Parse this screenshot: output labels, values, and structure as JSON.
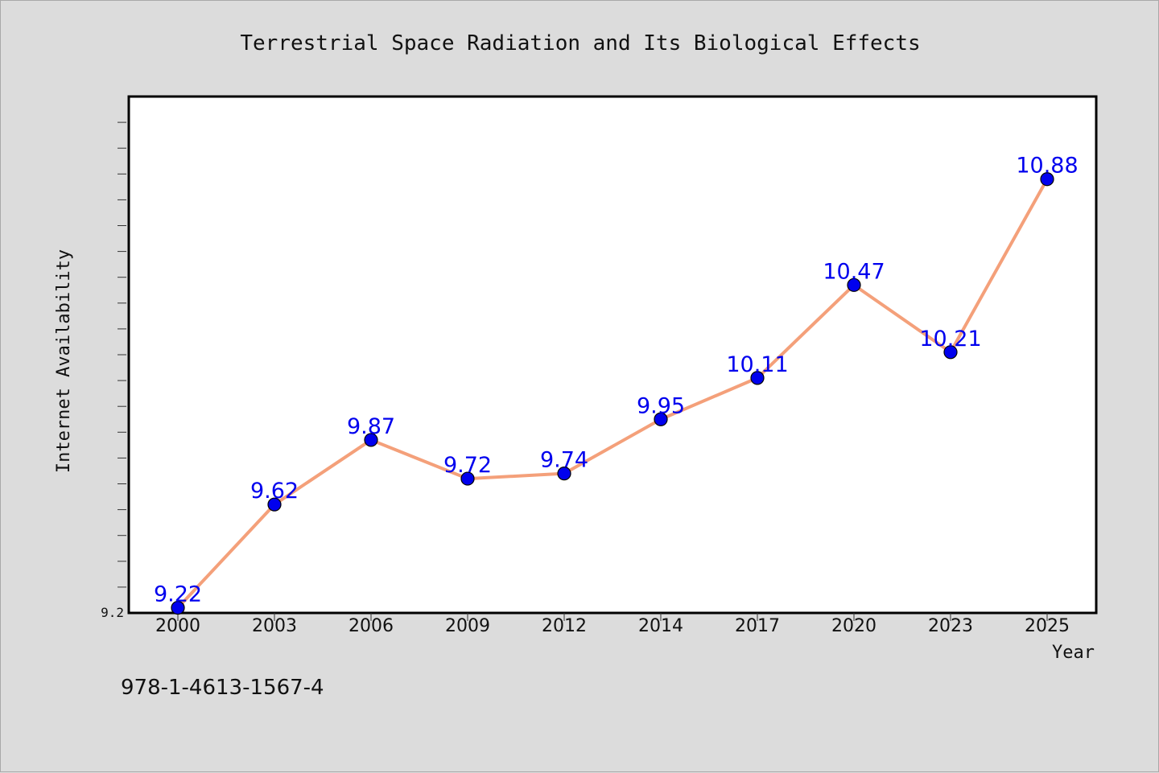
{
  "chart_data": {
    "type": "line",
    "title": "Terrestrial Space Radiation and Its Biological Effects",
    "xlabel": "Year",
    "ylabel": "Internet Availability",
    "categories": [
      "2000",
      "2003",
      "2006",
      "2009",
      "2012",
      "2014",
      "2017",
      "2020",
      "2023",
      "2025"
    ],
    "series": [
      {
        "values": [
          9.22,
          9.62,
          9.87,
          9.72,
          9.74,
          9.95,
          10.11,
          10.47,
          10.21,
          10.88
        ]
      }
    ],
    "ylim": [
      9.2,
      11.2
    ],
    "y_tick_labels": [
      "9.2"
    ],
    "grid": false,
    "colors": {
      "line": "#f4a07a",
      "marker": "#0000ee",
      "data_label": "#0000ee",
      "background": "#dcdcdc",
      "plot_bg": "#ffffff"
    }
  },
  "footer_text": "978-1-4613-1567-4"
}
